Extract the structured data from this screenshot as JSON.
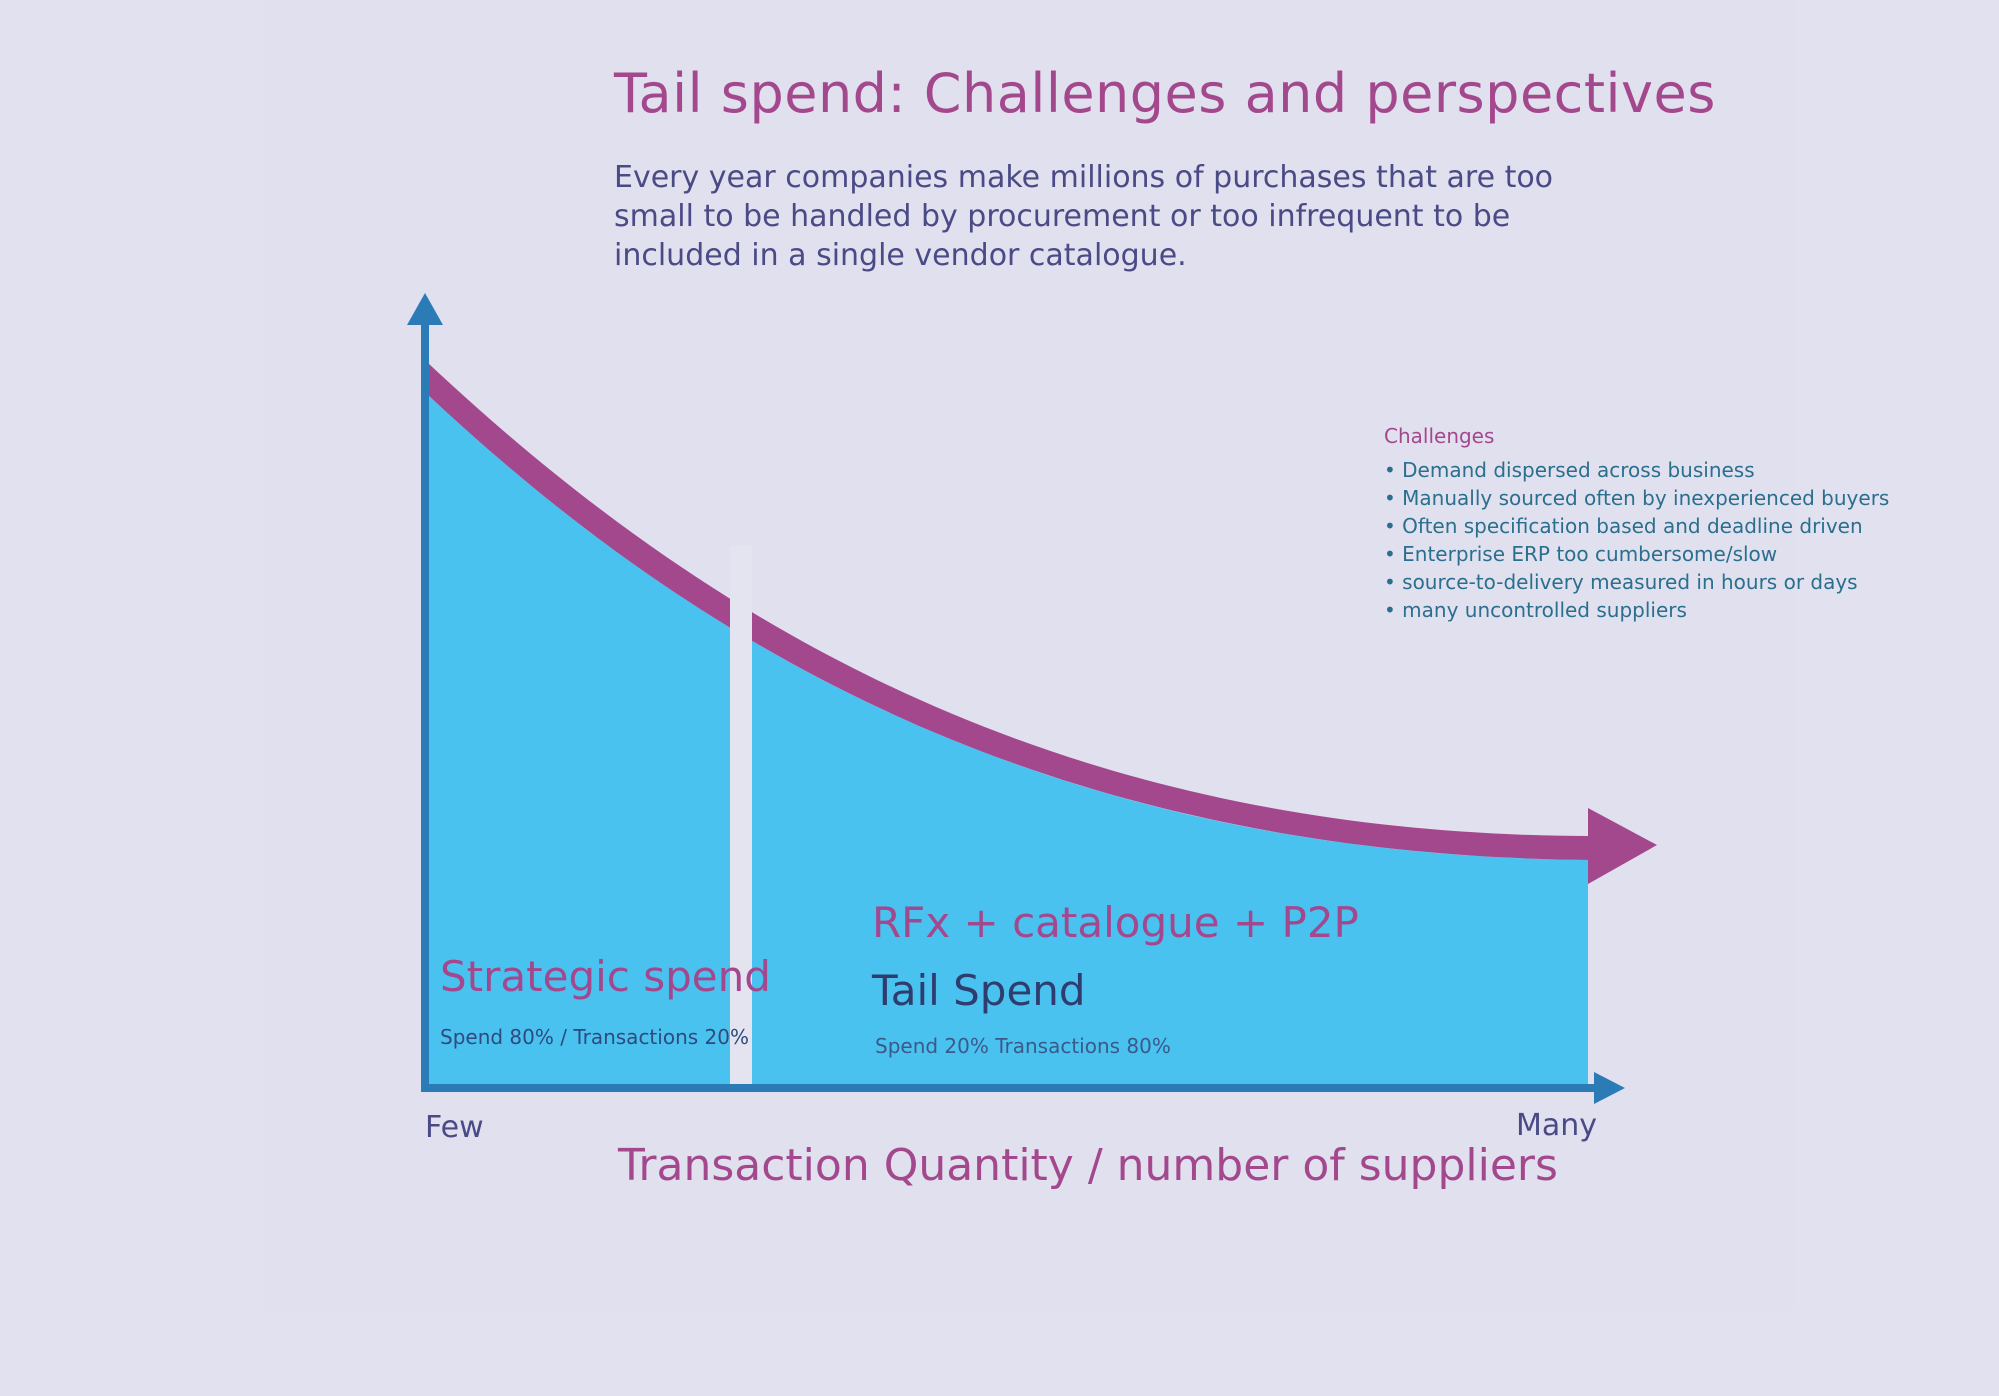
{
  "title": "Tail spend: Challenges and perspectives",
  "intro": [
    "Every year companies make millions of purchases that are too",
    "small to be handled by procurement or too infrequent to be",
    "included in a single vendor catalogue."
  ],
  "challenges": {
    "title": "Challenges",
    "items": [
      "• Demand dispersed across business",
      "• Manually sourced often by inexperienced buyers",
      "• Often specification based and deadline driven",
      "• Enterprise ERP too cumbersome/slow",
      "• source-to-delivery measured in hours or days",
      "• many uncontrolled suppliers"
    ]
  },
  "regions": {
    "strategic": {
      "title": "Strategic spend",
      "subtitle": "Spend 80% / Transactions 20%"
    },
    "tail": {
      "approach": "RFx + catalogue + P2P",
      "title": "Tail Spend",
      "subtitle": "Spend 20%  Transactions 80%"
    }
  },
  "axis": {
    "x_start": "Few",
    "x_end": "Many",
    "x_title": "Transaction  Quantity / number of suppliers"
  },
  "colors": {
    "background": "#e2e1ef",
    "magenta": "#a4488e",
    "area_blue": "#49c2f0",
    "axis_blue": "#2a7bb6",
    "text_navy": "#4a4b86"
  }
}
